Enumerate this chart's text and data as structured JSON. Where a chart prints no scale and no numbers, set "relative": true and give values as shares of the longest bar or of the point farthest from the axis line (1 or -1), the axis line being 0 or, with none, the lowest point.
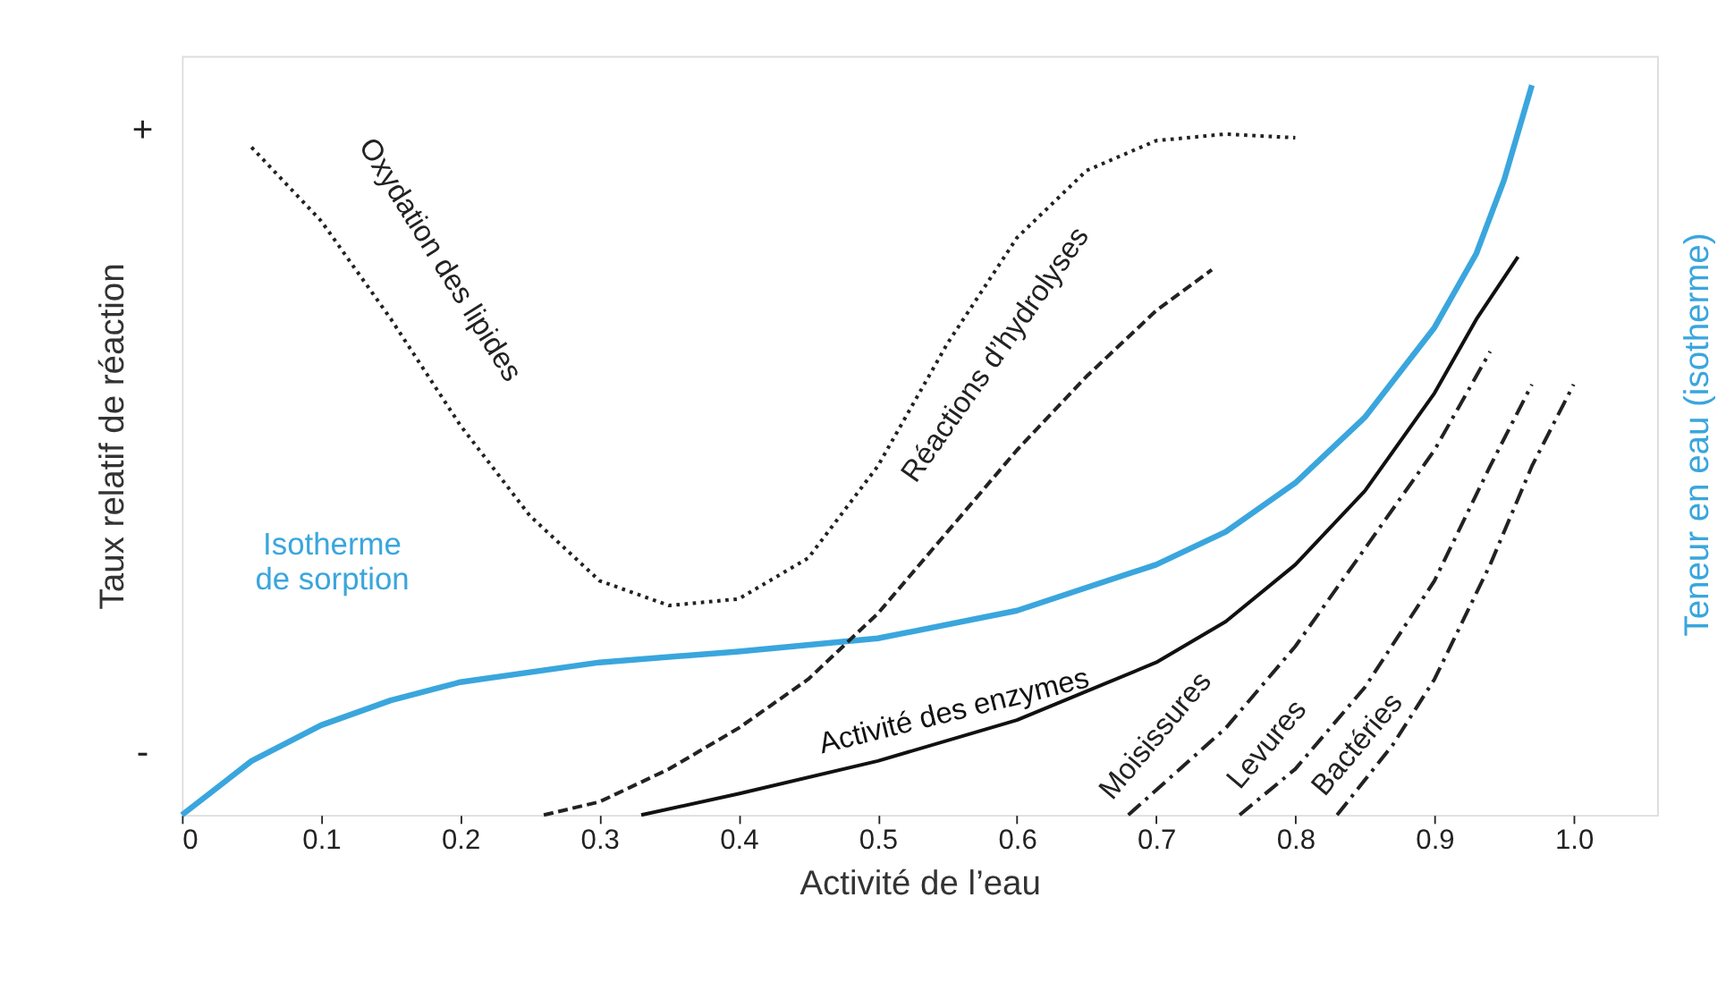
{
  "chart_data": {
    "type": "line",
    "relative": true,
    "xlabel": "Activité de l’eau",
    "ylabel": "Taux relatif de réaction",
    "y2label": "Teneur en eau (isotherme)",
    "xlim": [
      0,
      1.06
    ],
    "xticks": [
      0,
      0.1,
      0.2,
      0.3,
      0.4,
      0.5,
      0.6,
      0.7,
      0.8,
      0.9,
      {
        "value": 1,
        "label": "1.0"
      }
    ],
    "grid": false,
    "marker": "none",
    "annotations": [
      "+",
      "-"
    ],
    "series": [
      {
        "name": "Isotherme\nde sorption",
        "color": "#3aa6dd",
        "axis": "y2",
        "line_style": "solid",
        "x": [
          0,
          0.05,
          0.1,
          0.15,
          0.2,
          0.3,
          0.4,
          0.5,
          0.6,
          0.7,
          0.75,
          0.8,
          0.85,
          0.9,
          0.93,
          0.95,
          0.97
        ],
        "values": [
          0,
          0.074,
          0.123,
          0.157,
          0.182,
          0.209,
          0.224,
          0.242,
          0.28,
          0.343,
          0.388,
          0.455,
          0.545,
          0.668,
          0.769,
          0.87,
          1.0
        ]
      },
      {
        "name": "Oxydation des lipides",
        "color": "#222222",
        "line_style": "dotted",
        "x": [
          0.05,
          0.1,
          0.15,
          0.2,
          0.25,
          0.3,
          0.35,
          0.4,
          0.45,
          0.5,
          0.55,
          0.6,
          0.65,
          0.7,
          0.75,
          0.8
        ],
        "values": [
          0.915,
          0.814,
          0.68,
          0.534,
          0.41,
          0.321,
          0.287,
          0.296,
          0.352,
          0.478,
          0.646,
          0.791,
          0.883,
          0.924,
          0.933,
          0.928
        ]
      },
      {
        "name": "Réactions d’hydrolyses",
        "color": "#222222",
        "line_style": "dashed",
        "x": [
          0.26,
          0.3,
          0.35,
          0.4,
          0.45,
          0.5,
          0.55,
          0.6,
          0.65,
          0.7,
          0.74
        ],
        "values": [
          0,
          0.018,
          0.063,
          0.119,
          0.186,
          0.276,
          0.388,
          0.5,
          0.601,
          0.691,
          0.747
        ]
      },
      {
        "name": "Activité des enzymes",
        "color": "#111111",
        "line_style": "solid",
        "x": [
          0.33,
          0.4,
          0.5,
          0.6,
          0.7,
          0.75,
          0.8,
          0.85,
          0.9,
          0.93,
          0.96
        ],
        "values": [
          0,
          0.029,
          0.074,
          0.13,
          0.209,
          0.265,
          0.343,
          0.444,
          0.578,
          0.679,
          0.765
        ]
      },
      {
        "name": "Moisissures",
        "color": "#222222",
        "line_style": "dashdot",
        "x": [
          0.68,
          0.75,
          0.8,
          0.85,
          0.9,
          0.94
        ],
        "values": [
          0,
          0.119,
          0.231,
          0.365,
          0.5,
          0.635
        ]
      },
      {
        "name": "Levures",
        "color": "#222222",
        "line_style": "dashdot",
        "x": [
          0.76,
          0.8,
          0.85,
          0.9,
          0.94,
          0.97
        ],
        "values": [
          0,
          0.063,
          0.175,
          0.321,
          0.478,
          0.59
        ]
      },
      {
        "name": "Bactéries",
        "color": "#222222",
        "line_style": "dashdot",
        "x": [
          0.83,
          0.87,
          0.9,
          0.94,
          0.97,
          1.0
        ],
        "values": [
          0,
          0.096,
          0.186,
          0.343,
          0.478,
          0.59
        ]
      }
    ]
  }
}
